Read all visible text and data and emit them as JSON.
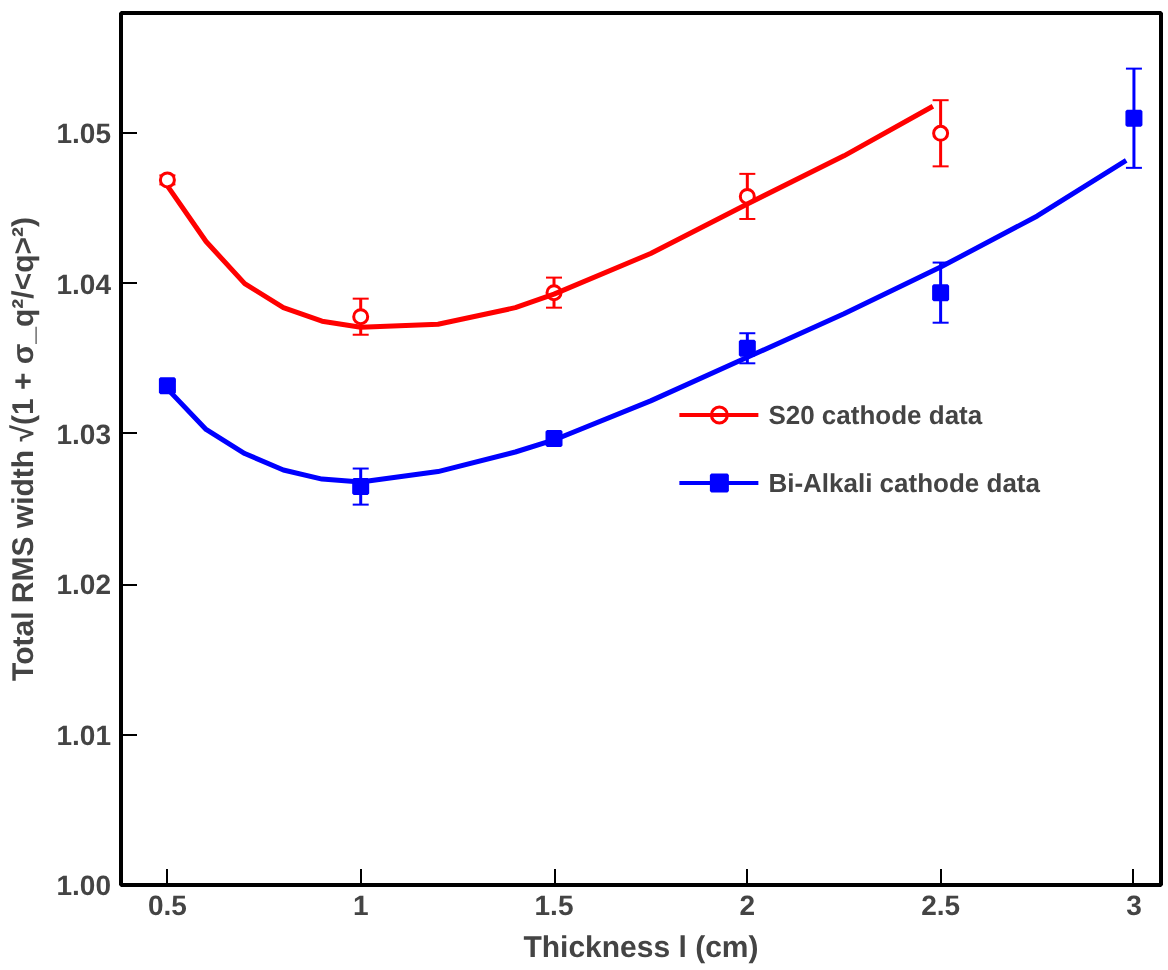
{
  "chart_data": {
    "type": "scatter",
    "xlabel": "Thickness l (cm)",
    "ylabel": "Total RMS width √(1 + σ_q²/<q>²)",
    "xlim": [
      0.38,
      3.07
    ],
    "xticks": [
      0.5,
      1,
      {
        "value": 1.5,
        "label": "1.5"
      },
      2,
      {
        "value": 2.5,
        "label": "2.5"
      },
      3
    ],
    "ylim": [
      1.0,
      1.058
    ],
    "yticks": [
      {
        "value": 1.0,
        "label": "1.00"
      },
      {
        "value": 1.01,
        "label": "1.01"
      },
      {
        "value": 1.02,
        "label": "1.02"
      },
      {
        "value": 1.03,
        "label": "1.03"
      },
      {
        "value": 1.04,
        "label": "1.04"
      },
      {
        "value": 1.05,
        "label": "1.05"
      }
    ],
    "grid": false,
    "legend": "right",
    "series": [
      {
        "name": "S20 cathode data",
        "color": "#ff0000",
        "marker": "circle",
        "x": [
          0.5,
          1,
          1.5,
          2,
          2.5
        ],
        "values": [
          1.0469,
          1.0378,
          1.0394,
          1.0458,
          1.05
        ],
        "errors": [
          0.0003,
          0.0012,
          0.001,
          0.0015,
          0.0022
        ]
      },
      {
        "name": "Bi-Alkali cathode data",
        "color": "#0000ff",
        "marker": "square",
        "x": [
          0.5,
          1,
          1.5,
          2,
          2.5,
          3
        ],
        "values": [
          1.0332,
          1.0265,
          1.0297,
          1.0357,
          1.0394,
          1.051
        ],
        "errors": [
          0.0003,
          0.0012,
          0.0004,
          0.001,
          0.002,
          0.0033
        ]
      },
      {
        "type": "line",
        "color": "#ff0000",
        "x": [
          0.5,
          0.6,
          0.7,
          0.8,
          0.9,
          1.0,
          1.2,
          1.4,
          1.5,
          1.75,
          2.0,
          2.25,
          2.48
        ],
        "values": [
          1.0465,
          1.0428,
          1.04,
          1.0384,
          1.0375,
          1.0371,
          1.0373,
          1.0384,
          1.0393,
          1.042,
          1.0453,
          1.0485,
          1.0518
        ]
      },
      {
        "type": "line",
        "color": "#0000ff",
        "x": [
          0.5,
          0.6,
          0.7,
          0.8,
          0.9,
          1.0,
          1.2,
          1.4,
          1.5,
          1.75,
          2.0,
          2.25,
          2.5,
          2.75,
          2.98
        ],
        "values": [
          1.033,
          1.0303,
          1.0287,
          1.0276,
          1.027,
          1.0268,
          1.0275,
          1.0288,
          1.0296,
          1.0322,
          1.0351,
          1.038,
          1.0411,
          1.0445,
          1.0482
        ]
      }
    ]
  }
}
